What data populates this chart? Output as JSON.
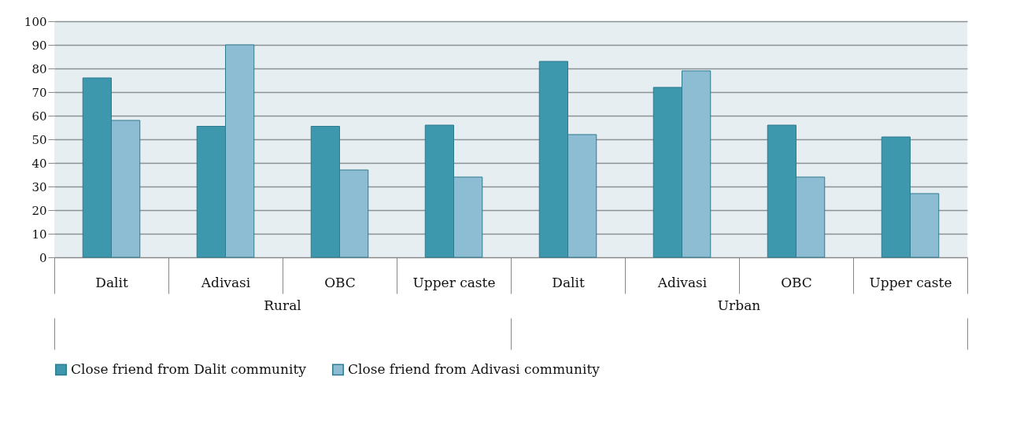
{
  "chart_data": {
    "type": "bar",
    "categories": [
      "Dalit",
      "Adivasi",
      "OBC",
      "Upper caste",
      "Dalit",
      "Adivasi",
      "OBC",
      "Upper caste"
    ],
    "series": [
      {
        "name": "Close friend from Dalit community",
        "color": "#3d97ad",
        "values": [
          76,
          55.5,
          55.5,
          56,
          83,
          72,
          56,
          51
        ]
      },
      {
        "name": "Close friend from Adivasi community",
        "color": "#8dbdd3",
        "values": [
          58,
          90,
          37,
          34,
          52,
          79,
          34,
          27
        ]
      }
    ],
    "ylim": [
      0,
      100
    ],
    "yticks": [
      0,
      10,
      20,
      30,
      40,
      50,
      60,
      70,
      80,
      90,
      100
    ],
    "grid": "y",
    "legend": "bottom",
    "annotations": [
      "Rural",
      "Urban"
    ]
  }
}
